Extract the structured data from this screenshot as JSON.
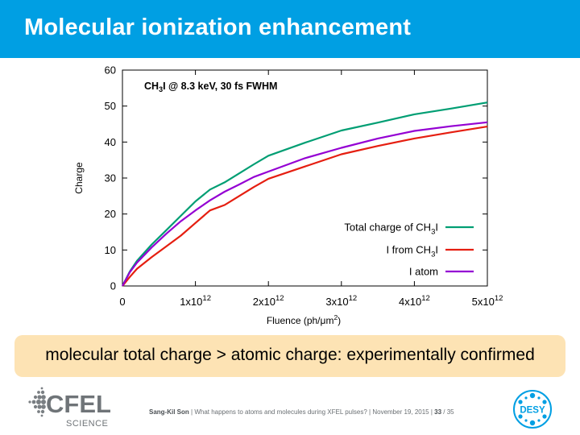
{
  "slide": {
    "title": "Molecular ionization enhancement",
    "callout": "molecular total charge > atomic charge: experimentally confirmed",
    "footer": {
      "author": "Sang-Kil Son",
      "sep1": " |  ",
      "talk": "What happens to atoms and molecules during XFEL pulses?",
      "sep2": " |  ",
      "date": "November 19, 2015",
      "sep3": " |  ",
      "page": "33",
      "total": " / 35"
    },
    "logos": {
      "cfel_main": "CFEL",
      "cfel_sub": "SCIENCE",
      "desy": "DESY"
    }
  },
  "chart_data": {
    "type": "line",
    "annotation": {
      "pre": "CH",
      "sub": "3",
      "post": "I @ 8.3 keV, 30 fs FWHM"
    },
    "xlabel": {
      "pre": "Fluence (ph/",
      "mu": "μ",
      "m": "m",
      "sup": "2",
      "post": ")"
    },
    "ylabel": "Charge",
    "xlim": [
      0,
      5000000000000.0
    ],
    "ylim": [
      0,
      60
    ],
    "x_ticks": [
      {
        "value": 0,
        "base": "0",
        "exp": ""
      },
      {
        "value": 1000000000000.0,
        "base": "1x10",
        "exp": "12"
      },
      {
        "value": 2000000000000.0,
        "base": "2x10",
        "exp": "12"
      },
      {
        "value": 3000000000000.0,
        "base": "3x10",
        "exp": "12"
      },
      {
        "value": 4000000000000.0,
        "base": "4x10",
        "exp": "12"
      },
      {
        "value": 5000000000000.0,
        "base": "5x10",
        "exp": "12"
      }
    ],
    "y_ticks": [
      0,
      10,
      20,
      30,
      40,
      50,
      60
    ],
    "grid": false,
    "legend_position": "bottom-right",
    "series": [
      {
        "name": "Total charge of CH3I",
        "legend": {
          "pre": "Total charge of CH",
          "sub": "3",
          "post": "I"
        },
        "color": "#009e73",
        "x": [
          0,
          100000000000.0,
          200000000000.0,
          400000000000.0,
          600000000000.0,
          800000000000.0,
          1000000000000.0,
          1200000000000.0,
          1400000000000.0,
          1600000000000.0,
          1800000000000.0,
          2000000000000.0,
          2500000000000.0,
          3000000000000.0,
          3500000000000.0,
          4000000000000.0,
          4500000000000.0,
          5000000000000.0
        ],
        "y": [
          0,
          4,
          7,
          11.5,
          15.5,
          19.5,
          23.5,
          26.8,
          28.8,
          31.3,
          33.8,
          36.2,
          39.8,
          43.2,
          45.4,
          47.7,
          49.3,
          51
        ]
      },
      {
        "name": "I from CH3I",
        "legend": {
          "pre": "I from CH",
          "sub": "3",
          "post": "I"
        },
        "color": "#e51e10",
        "x": [
          0,
          100000000000.0,
          200000000000.0,
          400000000000.0,
          600000000000.0,
          800000000000.0,
          1000000000000.0,
          1200000000000.0,
          1400000000000.0,
          1600000000000.0,
          1800000000000.0,
          2000000000000.0,
          2500000000000.0,
          3000000000000.0,
          3500000000000.0,
          4000000000000.0,
          4500000000000.0,
          5000000000000.0
        ],
        "y": [
          0,
          2.5,
          4.8,
          8,
          11,
          14,
          17.5,
          21,
          22.5,
          25,
          27.5,
          29.8,
          33.2,
          36.6,
          38.9,
          41,
          42.7,
          44.3
        ]
      },
      {
        "name": "I atom",
        "legend": {
          "pre": "I atom",
          "sub": "",
          "post": ""
        },
        "color": "#9400d3",
        "x": [
          0,
          100000000000.0,
          200000000000.0,
          400000000000.0,
          600000000000.0,
          800000000000.0,
          1000000000000.0,
          1200000000000.0,
          1400000000000.0,
          1600000000000.0,
          1800000000000.0,
          2000000000000.0,
          2500000000000.0,
          3000000000000.0,
          3500000000000.0,
          4000000000000.0,
          4500000000000.0,
          5000000000000.0
        ],
        "y": [
          0,
          3.8,
          6.5,
          10.7,
          14.5,
          18,
          21,
          23.8,
          26.2,
          28.2,
          30.3,
          31.8,
          35.5,
          38.4,
          41,
          43.1,
          44.4,
          45.5
        ]
      }
    ]
  }
}
